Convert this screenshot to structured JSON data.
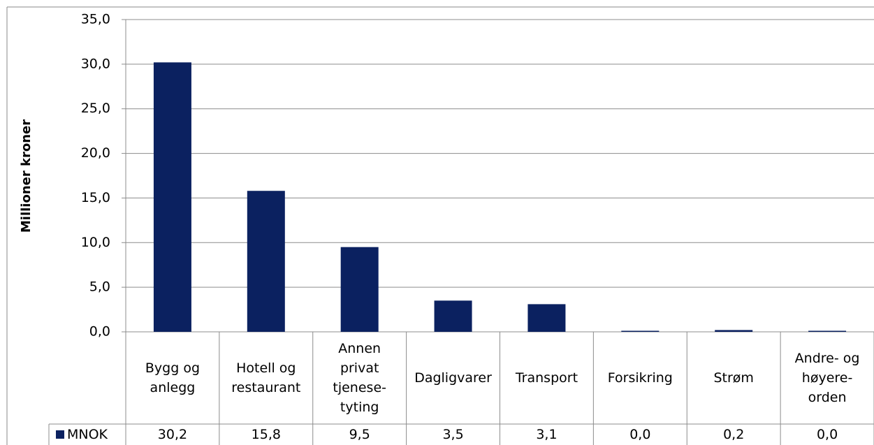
{
  "chart_data": {
    "type": "bar",
    "y_label": "Millioner kroner",
    "categories": [
      "Bygg og\nanlegg",
      "Hotell og\nrestaurant",
      "Annen\nprivat\ntjenese-\ntyting",
      "Dagligvarer",
      "Transport",
      "Forsikring",
      "Strøm",
      "Andre- og\nhøyere-\norden"
    ],
    "series": [
      {
        "name": "MNOK",
        "color": "#0b2160",
        "values": [
          30.2,
          15.8,
          9.5,
          3.5,
          3.1,
          0.0,
          0.2,
          0.0
        ],
        "value_labels": [
          "30,2",
          "15,8",
          "9,5",
          "3,5",
          "3,1",
          "0,0",
          "0,2",
          "0,0"
        ]
      }
    ],
    "ylim": [
      0,
      35
    ],
    "yticks": [
      {
        "value": 0,
        "label": "0,0"
      },
      {
        "value": 5,
        "label": "5,0"
      },
      {
        "value": 10,
        "label": "10,0"
      },
      {
        "value": 15,
        "label": "15,0"
      },
      {
        "value": 20,
        "label": "20,0"
      },
      {
        "value": 25,
        "label": "25,0"
      },
      {
        "value": 30,
        "label": "30,0"
      },
      {
        "value": 35,
        "label": "35,0"
      }
    ],
    "grid": true
  }
}
